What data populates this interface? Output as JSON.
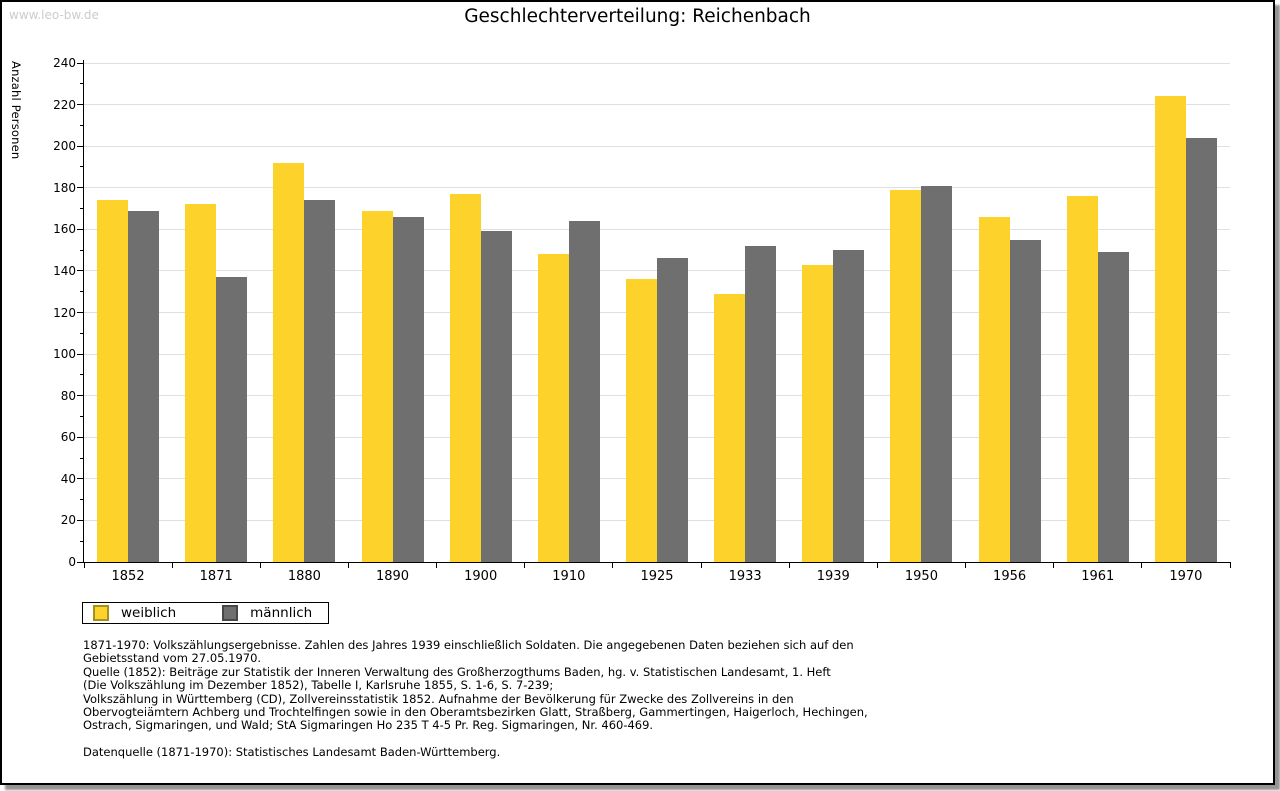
{
  "watermark": "www.leo-bw.de",
  "chart_data": {
    "type": "bar",
    "title": "Geschlechterverteilung: Reichenbach",
    "ylabel": "Anzahl Personen",
    "xlabel": "",
    "ylim": [
      0,
      240
    ],
    "ytick_major_step": 20,
    "ytick_minor_step": 10,
    "grid": true,
    "legend_position": "bottom-left",
    "categories": [
      "1852",
      "1871",
      "1880",
      "1890",
      "1900",
      "1910",
      "1925",
      "1933",
      "1939",
      "1950",
      "1956",
      "1961",
      "1970"
    ],
    "series": [
      {
        "name": "weiblich",
        "color": "#fdd32b",
        "values": [
          174,
          172,
          192,
          169,
          177,
          148,
          136,
          129,
          143,
          179,
          166,
          176,
          224
        ]
      },
      {
        "name": "männlich",
        "color": "#6f6f6f",
        "values": [
          169,
          137,
          174,
          166,
          159,
          164,
          146,
          152,
          150,
          181,
          155,
          149,
          204
        ]
      }
    ]
  },
  "notes": [
    "1871-1970: Volkszählungsergebnisse. Zahlen des Jahres 1939 einschließlich Soldaten. Die angegebenen Daten beziehen sich auf den",
    "Gebietsstand vom 27.05.1970.",
    "Quelle (1852): Beiträge zur Statistik der Inneren Verwaltung des Großherzogthums Baden, hg. v. Statistischen Landesamt, 1. Heft",
    "(Die Volkszählung im Dezember 1852), Tabelle I, Karlsruhe 1855, S. 1-6, S. 7-239;",
    "Volkszählung in Württemberg (CD), Zollvereinsstatistik 1852. Aufnahme der Bevölkerung für Zwecke des Zollvereins in den",
    "Obervogteiämtern Achberg und Trochtelfingen sowie in den Oberamtsbezirken Glatt, Straßberg, Gammertingen, Haigerloch, Hechingen,",
    "Ostrach, Sigmaringen, und Wald; StA Sigmaringen Ho 235 T 4-5 Pr. Reg. Sigmaringen, Nr. 460-469.",
    "Datenquelle (1871-1970): Statistisches Landesamt Baden-Württemberg."
  ],
  "colors": {
    "bar_female": "#fdd32b",
    "bar_male": "#6f6f6f",
    "gridline": "#e0e0e0",
    "axis": "#000000",
    "watermark_text": "#cccccc"
  }
}
